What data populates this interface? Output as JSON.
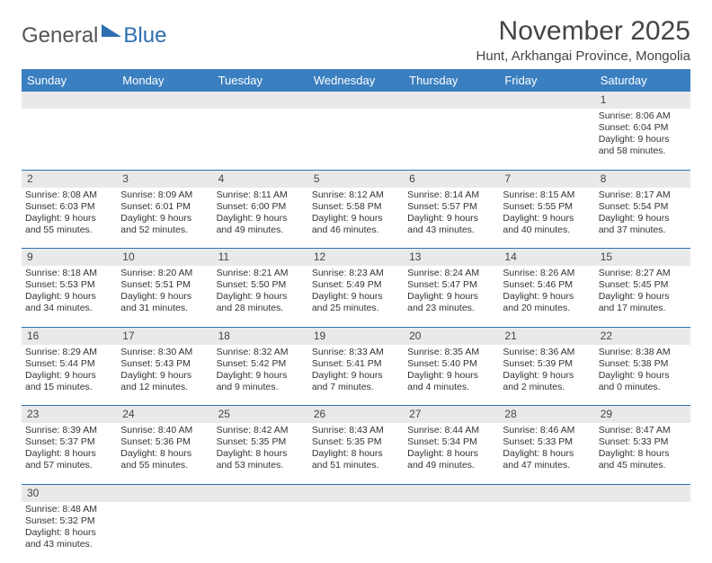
{
  "logo": {
    "part1": "General",
    "part2": "Blue"
  },
  "title": "November 2025",
  "location": "Hunt, Arkhangai Province, Mongolia",
  "colors": {
    "header_bg": "#3a7fc0",
    "header_text": "#ffffff",
    "daynum_bg": "#e9e9e9",
    "row_divider": "#2f6fb0",
    "logo_accent": "#2f6fb0"
  },
  "typography": {
    "title_fontsize": 30,
    "location_fontsize": 15,
    "weekday_fontsize": 13,
    "cell_fontsize": 10.5
  },
  "weekdays": [
    "Sunday",
    "Monday",
    "Tuesday",
    "Wednesday",
    "Thursday",
    "Friday",
    "Saturday"
  ],
  "weeks": [
    {
      "nums": [
        "",
        "",
        "",
        "",
        "",
        "",
        "1"
      ],
      "cells": [
        null,
        null,
        null,
        null,
        null,
        null,
        {
          "sunrise": "Sunrise: 8:06 AM",
          "sunset": "Sunset: 6:04 PM",
          "daylight": "Daylight: 9 hours and 58 minutes."
        }
      ]
    },
    {
      "nums": [
        "2",
        "3",
        "4",
        "5",
        "6",
        "7",
        "8"
      ],
      "cells": [
        {
          "sunrise": "Sunrise: 8:08 AM",
          "sunset": "Sunset: 6:03 PM",
          "daylight": "Daylight: 9 hours and 55 minutes."
        },
        {
          "sunrise": "Sunrise: 8:09 AM",
          "sunset": "Sunset: 6:01 PM",
          "daylight": "Daylight: 9 hours and 52 minutes."
        },
        {
          "sunrise": "Sunrise: 8:11 AM",
          "sunset": "Sunset: 6:00 PM",
          "daylight": "Daylight: 9 hours and 49 minutes."
        },
        {
          "sunrise": "Sunrise: 8:12 AM",
          "sunset": "Sunset: 5:58 PM",
          "daylight": "Daylight: 9 hours and 46 minutes."
        },
        {
          "sunrise": "Sunrise: 8:14 AM",
          "sunset": "Sunset: 5:57 PM",
          "daylight": "Daylight: 9 hours and 43 minutes."
        },
        {
          "sunrise": "Sunrise: 8:15 AM",
          "sunset": "Sunset: 5:55 PM",
          "daylight": "Daylight: 9 hours and 40 minutes."
        },
        {
          "sunrise": "Sunrise: 8:17 AM",
          "sunset": "Sunset: 5:54 PM",
          "daylight": "Daylight: 9 hours and 37 minutes."
        }
      ]
    },
    {
      "nums": [
        "9",
        "10",
        "11",
        "12",
        "13",
        "14",
        "15"
      ],
      "cells": [
        {
          "sunrise": "Sunrise: 8:18 AM",
          "sunset": "Sunset: 5:53 PM",
          "daylight": "Daylight: 9 hours and 34 minutes."
        },
        {
          "sunrise": "Sunrise: 8:20 AM",
          "sunset": "Sunset: 5:51 PM",
          "daylight": "Daylight: 9 hours and 31 minutes."
        },
        {
          "sunrise": "Sunrise: 8:21 AM",
          "sunset": "Sunset: 5:50 PM",
          "daylight": "Daylight: 9 hours and 28 minutes."
        },
        {
          "sunrise": "Sunrise: 8:23 AM",
          "sunset": "Sunset: 5:49 PM",
          "daylight": "Daylight: 9 hours and 25 minutes."
        },
        {
          "sunrise": "Sunrise: 8:24 AM",
          "sunset": "Sunset: 5:47 PM",
          "daylight": "Daylight: 9 hours and 23 minutes."
        },
        {
          "sunrise": "Sunrise: 8:26 AM",
          "sunset": "Sunset: 5:46 PM",
          "daylight": "Daylight: 9 hours and 20 minutes."
        },
        {
          "sunrise": "Sunrise: 8:27 AM",
          "sunset": "Sunset: 5:45 PM",
          "daylight": "Daylight: 9 hours and 17 minutes."
        }
      ]
    },
    {
      "nums": [
        "16",
        "17",
        "18",
        "19",
        "20",
        "21",
        "22"
      ],
      "cells": [
        {
          "sunrise": "Sunrise: 8:29 AM",
          "sunset": "Sunset: 5:44 PM",
          "daylight": "Daylight: 9 hours and 15 minutes."
        },
        {
          "sunrise": "Sunrise: 8:30 AM",
          "sunset": "Sunset: 5:43 PM",
          "daylight": "Daylight: 9 hours and 12 minutes."
        },
        {
          "sunrise": "Sunrise: 8:32 AM",
          "sunset": "Sunset: 5:42 PM",
          "daylight": "Daylight: 9 hours and 9 minutes."
        },
        {
          "sunrise": "Sunrise: 8:33 AM",
          "sunset": "Sunset: 5:41 PM",
          "daylight": "Daylight: 9 hours and 7 minutes."
        },
        {
          "sunrise": "Sunrise: 8:35 AM",
          "sunset": "Sunset: 5:40 PM",
          "daylight": "Daylight: 9 hours and 4 minutes."
        },
        {
          "sunrise": "Sunrise: 8:36 AM",
          "sunset": "Sunset: 5:39 PM",
          "daylight": "Daylight: 9 hours and 2 minutes."
        },
        {
          "sunrise": "Sunrise: 8:38 AM",
          "sunset": "Sunset: 5:38 PM",
          "daylight": "Daylight: 9 hours and 0 minutes."
        }
      ]
    },
    {
      "nums": [
        "23",
        "24",
        "25",
        "26",
        "27",
        "28",
        "29"
      ],
      "cells": [
        {
          "sunrise": "Sunrise: 8:39 AM",
          "sunset": "Sunset: 5:37 PM",
          "daylight": "Daylight: 8 hours and 57 minutes."
        },
        {
          "sunrise": "Sunrise: 8:40 AM",
          "sunset": "Sunset: 5:36 PM",
          "daylight": "Daylight: 8 hours and 55 minutes."
        },
        {
          "sunrise": "Sunrise: 8:42 AM",
          "sunset": "Sunset: 5:35 PM",
          "daylight": "Daylight: 8 hours and 53 minutes."
        },
        {
          "sunrise": "Sunrise: 8:43 AM",
          "sunset": "Sunset: 5:35 PM",
          "daylight": "Daylight: 8 hours and 51 minutes."
        },
        {
          "sunrise": "Sunrise: 8:44 AM",
          "sunset": "Sunset: 5:34 PM",
          "daylight": "Daylight: 8 hours and 49 minutes."
        },
        {
          "sunrise": "Sunrise: 8:46 AM",
          "sunset": "Sunset: 5:33 PM",
          "daylight": "Daylight: 8 hours and 47 minutes."
        },
        {
          "sunrise": "Sunrise: 8:47 AM",
          "sunset": "Sunset: 5:33 PM",
          "daylight": "Daylight: 8 hours and 45 minutes."
        }
      ]
    },
    {
      "nums": [
        "30",
        "",
        "",
        "",
        "",
        "",
        ""
      ],
      "cells": [
        {
          "sunrise": "Sunrise: 8:48 AM",
          "sunset": "Sunset: 5:32 PM",
          "daylight": "Daylight: 8 hours and 43 minutes."
        },
        null,
        null,
        null,
        null,
        null,
        null
      ]
    }
  ]
}
